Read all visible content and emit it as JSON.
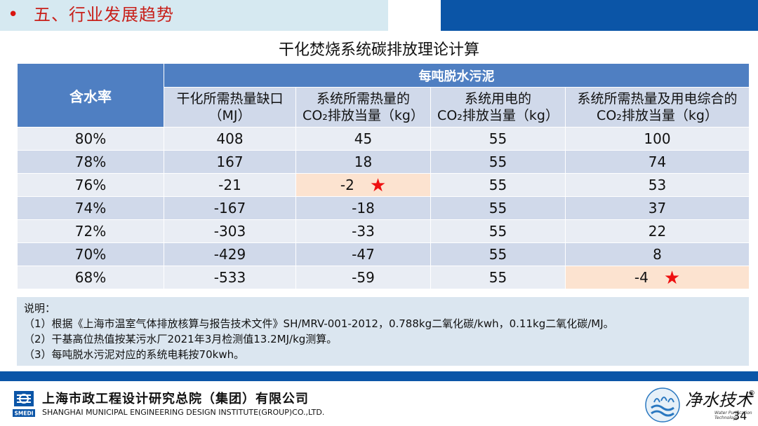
{
  "header": {
    "bullet": "•",
    "title": "五、行业发展趋势"
  },
  "table_title": "干化焚烧系统碳排放理论计算",
  "table": {
    "rate_header": "含水率",
    "group_header": "每吨脱水污泥",
    "columns": [
      {
        "l1": "干化所需热量缺口",
        "l2": "（MJ）"
      },
      {
        "l1": "系统所需热量的",
        "l2": "CO₂排放当量（kg）"
      },
      {
        "l1": "系统用电的",
        "l2": "CO₂排放当量（kg）"
      },
      {
        "l1": "系统所需热量及用电综合的",
        "l2": "CO₂排放当量（kg）"
      }
    ],
    "rows": [
      [
        "80%",
        "408",
        "45",
        "55",
        "100"
      ],
      [
        "78%",
        "167",
        "18",
        "55",
        "74"
      ],
      [
        "76%",
        "-21",
        "-2",
        "55",
        "53"
      ],
      [
        "74%",
        "-167",
        "-18",
        "55",
        "37"
      ],
      [
        "72%",
        "-303",
        "-33",
        "55",
        "22"
      ],
      [
        "70%",
        "-429",
        "-47",
        "55",
        "8"
      ],
      [
        "68%",
        "-533",
        "-59",
        "55",
        "-4"
      ]
    ],
    "star_glyph": "★"
  },
  "notes": {
    "heading": "说明：",
    "items": [
      "（1）根据《上海市温室气体排放核算与报告技术文件》SH/MRV-001-2012，0.788kg二氧化碳/kwh，0.11kg二氧化碳/MJ。",
      "（2）干基高位热值按某污水厂2021年3月检测值13.2MJ/kg测算。",
      "（3）每吨脱水污泥对应的系统电耗按70kwh。"
    ]
  },
  "footer": {
    "org_cn": "上海市政工程设计研究总院（集团）有限公司",
    "org_en": "SHANGHAI MUNICIPAL ENGINEERING DESIGN INSTITUTE(GROUP)CO.,LTD.",
    "logo_text": "SMEDI",
    "brand_text": "净水技术",
    "brand_reg": "®",
    "brand_sub": "Water Purification Technology",
    "page_number": "34"
  },
  "colors": {
    "header_bg_light": "#d6e9f1",
    "header_bg_dark": "#0b55a7",
    "title_red": "#c8201a",
    "table_head": "#4f7fc2",
    "row_light": "#e9edf4",
    "row_dark": "#d0d9ea",
    "highlight": "#fce3d0",
    "star": "#ee1010"
  }
}
